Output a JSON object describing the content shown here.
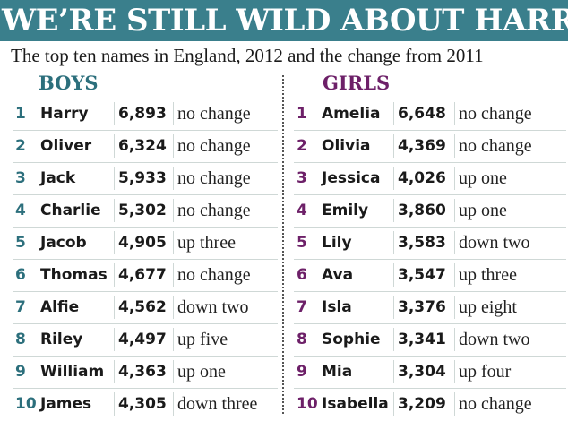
{
  "headline": "WE’RE STILL WILD ABOUT HARRY",
  "subtitle": "The top ten names in England, 2012 and the change from 2011",
  "boys": {
    "title": "BOYS",
    "rows": [
      {
        "rank": "1",
        "name": "Harry",
        "count": "6,893",
        "change": "no change"
      },
      {
        "rank": "2",
        "name": "Oliver",
        "count": "6,324",
        "change": "no change"
      },
      {
        "rank": "3",
        "name": "Jack",
        "count": "5,933",
        "change": "no change"
      },
      {
        "rank": "4",
        "name": "Charlie",
        "count": "5,302",
        "change": "no change"
      },
      {
        "rank": "5",
        "name": "Jacob",
        "count": "4,905",
        "change": "up three"
      },
      {
        "rank": "6",
        "name": "Thomas",
        "count": "4,677",
        "change": "no change"
      },
      {
        "rank": "7",
        "name": "Alfie",
        "count": "4,562",
        "change": "down two"
      },
      {
        "rank": "8",
        "name": "Riley",
        "count": "4,497",
        "change": "up five"
      },
      {
        "rank": "9",
        "name": "William",
        "count": "4,363",
        "change": "up one"
      },
      {
        "rank": "10",
        "name": "James",
        "count": "4,305",
        "change": "down three"
      }
    ]
  },
  "girls": {
    "title": "GIRLS",
    "rows": [
      {
        "rank": "1",
        "name": "Amelia",
        "count": "6,648",
        "change": "no change"
      },
      {
        "rank": "2",
        "name": "Olivia",
        "count": "4,369",
        "change": "no change"
      },
      {
        "rank": "3",
        "name": "Jessica",
        "count": "4,026",
        "change": "up one"
      },
      {
        "rank": "4",
        "name": "Emily",
        "count": "3,860",
        "change": "up one"
      },
      {
        "rank": "5",
        "name": "Lily",
        "count": "3,583",
        "change": "down two"
      },
      {
        "rank": "6",
        "name": "Ava",
        "count": "3,547",
        "change": "up three"
      },
      {
        "rank": "7",
        "name": "Isla",
        "count": "3,376",
        "change": "up eight"
      },
      {
        "rank": "8",
        "name": "Sophie",
        "count": "3,341",
        "change": "down two"
      },
      {
        "rank": "9",
        "name": "Mia",
        "count": "3,304",
        "change": "up four"
      },
      {
        "rank": "10",
        "name": "Isabella",
        "count": "3,209",
        "change": "no change"
      }
    ]
  },
  "colors": {
    "banner": "#3a7f8c",
    "boys_accent": "#2c6f7c",
    "girls_accent": "#6d2068"
  }
}
